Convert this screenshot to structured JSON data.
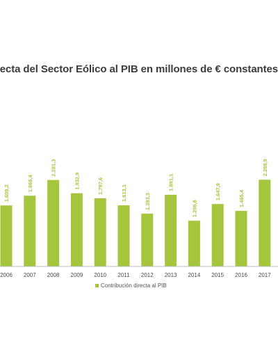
{
  "chart_data": {
    "type": "bar",
    "title": "recta del Sector Eólico al PIB en millones de € constantes",
    "categories": [
      "2006",
      "2007",
      "2008",
      "2009",
      "2010",
      "2011",
      "2012",
      "2013",
      "2014",
      "2015",
      "2016",
      "2017"
    ],
    "series": [
      {
        "name": "Contribución directa al PIB",
        "values": [
          1609.2,
          1866.4,
          2281.3,
          1932.9,
          1797.6,
          1613.1,
          1393.3,
          1891.1,
          1206.8,
          1647.9,
          1465.4,
          2288.9
        ],
        "labels": [
          "1.609,2",
          "1.866,4",
          "2.281,3",
          "1.932,9",
          "1.797,6",
          "1.613,1",
          "1.393,3",
          "1.891,1",
          "1.206,8",
          "1.647,9",
          "1.465,4",
          "2.288,9"
        ]
      }
    ],
    "ylim": [
      0,
      2300
    ],
    "grid": false,
    "legend": "bottom",
    "colors": {
      "bar": "#a5c63c",
      "axis": "#bdbdbd"
    }
  }
}
